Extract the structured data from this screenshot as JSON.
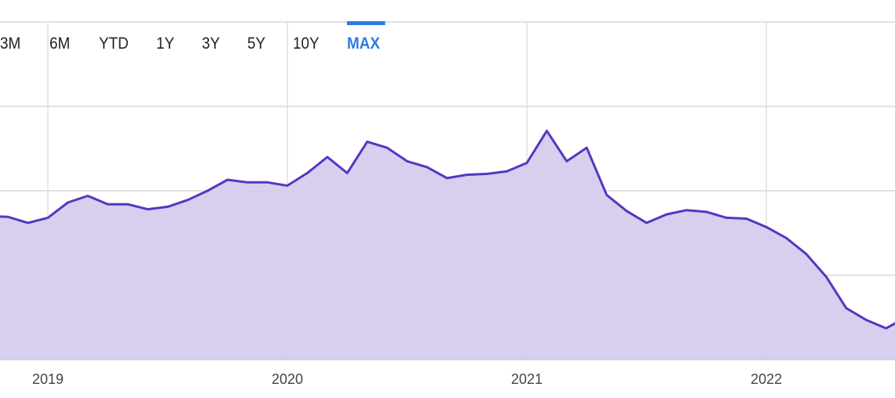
{
  "range_selector": {
    "options": [
      "3M",
      "6M",
      "YTD",
      "1Y",
      "3Y",
      "5Y",
      "10Y",
      "MAX"
    ],
    "selected": "MAX",
    "accent_color": "#2f7be0"
  },
  "chart_data": {
    "type": "area",
    "title": "",
    "xlabel": "",
    "ylabel": "",
    "x_tick_labels": [
      "2019",
      "2020",
      "2021",
      "2022"
    ],
    "x_ticks": [
      "2019-01",
      "2020-01",
      "2021-01",
      "2022-01"
    ],
    "xlim": [
      "2018-10",
      "2022-08"
    ],
    "ylim": [
      0,
      4
    ],
    "y_tick_labels_shown": false,
    "grid": true,
    "line_color": "#5636c2",
    "fill_color": "#d6ccee",
    "x": [
      "2018-10",
      "2018-11",
      "2018-12",
      "2019-01",
      "2019-02",
      "2019-03",
      "2019-04",
      "2019-05",
      "2019-06",
      "2019-07",
      "2019-08",
      "2019-09",
      "2019-10",
      "2019-11",
      "2019-12",
      "2020-01",
      "2020-02",
      "2020-03",
      "2020-04",
      "2020-05",
      "2020-06",
      "2020-07",
      "2020-08",
      "2020-09",
      "2020-10",
      "2020-11",
      "2020-12",
      "2021-01",
      "2021-02",
      "2021-03",
      "2021-04",
      "2021-05",
      "2021-06",
      "2021-07",
      "2021-08",
      "2021-09",
      "2021-10",
      "2021-11",
      "2021-12",
      "2022-01",
      "2022-02",
      "2022-03",
      "2022-04",
      "2022-05",
      "2022-06",
      "2022-07",
      "2022-08"
    ],
    "values": [
      1.7,
      1.69,
      1.62,
      1.68,
      1.86,
      1.94,
      1.84,
      1.84,
      1.78,
      1.81,
      1.89,
      2.0,
      2.13,
      2.1,
      2.1,
      2.06,
      2.21,
      2.4,
      2.21,
      2.58,
      2.51,
      2.35,
      2.28,
      2.15,
      2.19,
      2.2,
      2.23,
      2.33,
      2.71,
      2.35,
      2.51,
      1.95,
      1.76,
      1.62,
      1.72,
      1.77,
      1.75,
      1.68,
      1.67,
      1.57,
      1.44,
      1.25,
      0.98,
      0.61,
      0.47,
      0.37,
      0.5
    ]
  }
}
